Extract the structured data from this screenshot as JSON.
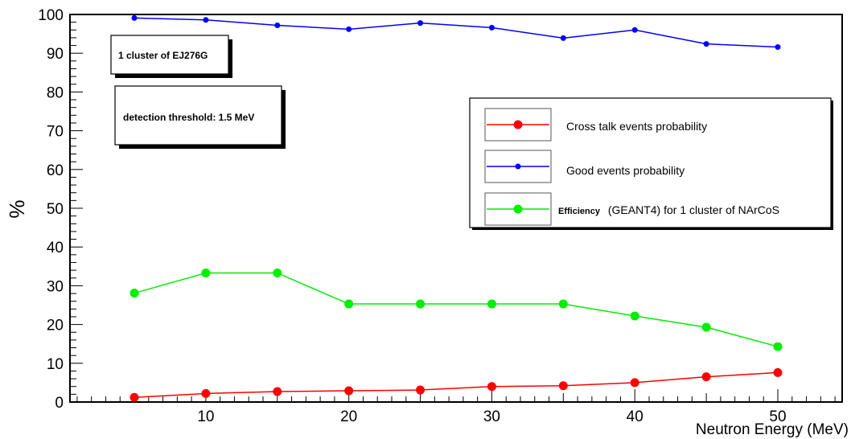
{
  "chart_data": {
    "type": "line",
    "xlabel": "Neutron Energy (MeV)",
    "ylabel": "%",
    "xlim": [
      0.5,
      54.5
    ],
    "ylim": [
      0,
      100
    ],
    "x_major_ticks": [
      10,
      20,
      30,
      40,
      50
    ],
    "y_major_ticks": [
      0,
      10,
      20,
      30,
      40,
      50,
      60,
      70,
      80,
      90,
      100
    ],
    "grid": false,
    "legend_position": "right",
    "x": [
      5,
      10,
      15,
      20,
      25,
      30,
      35,
      40,
      45,
      50
    ],
    "series": [
      {
        "name": "Cross talk events probability",
        "color": "#ff0000",
        "marker": "circle",
        "values": [
          1.2,
          2.2,
          2.7,
          2.9,
          3.1,
          4.0,
          4.2,
          5.0,
          6.5,
          7.6
        ]
      },
      {
        "name": "Good events probability",
        "color": "#0000ff",
        "marker": "small-dot",
        "values": [
          99.1,
          98.6,
          97.2,
          96.2,
          97.8,
          96.6,
          93.9,
          96.0,
          92.4,
          91.6
        ]
      },
      {
        "name_bold_part": "Efficiency",
        "name": "(GEANT4) for 1 cluster of NArCoS",
        "color": "#00ee00",
        "marker": "circle",
        "values": [
          28.1,
          33.3,
          33.3,
          25.3,
          25.3,
          25.3,
          25.3,
          22.2,
          19.3,
          14.3
        ]
      }
    ],
    "annotations": [
      "1 cluster of EJ276G",
      "detection threshold: 1.5 MeV"
    ]
  }
}
